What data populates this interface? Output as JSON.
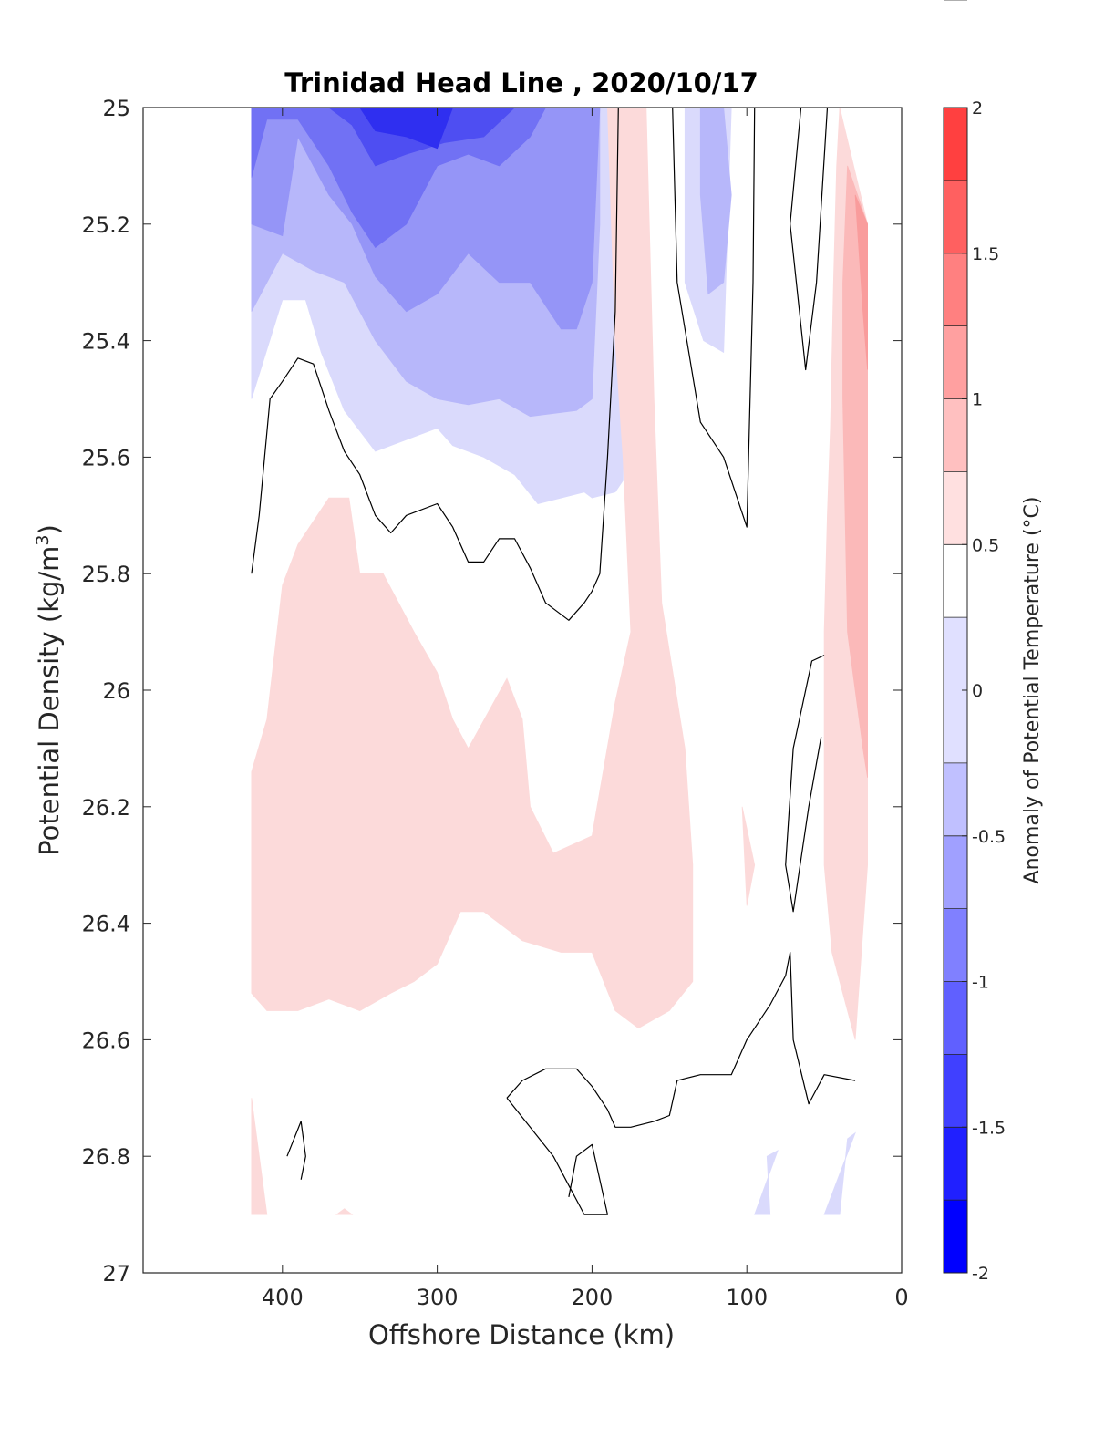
{
  "chart_data": {
    "type": "contour",
    "title": "Trinidad Head Line , 2020/10/17",
    "xlabel": "Offshore Distance (km)",
    "ylabel_main": "Potential Density (kg/m",
    "ylabel_sup": "3",
    "ylabel_close": ")",
    "colorbar_label": "Anomaly of Potential Temperature (°C)",
    "x_ticks": [
      "400",
      "300",
      "200",
      "100",
      "0"
    ],
    "x_tick_values": [
      400,
      300,
      200,
      100,
      0
    ],
    "y_ticks": [
      "25",
      "25.2",
      "25.4",
      "25.6",
      "25.8",
      "26",
      "26.2",
      "26.4",
      "26.6",
      "26.8",
      "27"
    ],
    "y_tick_values": [
      25,
      25.2,
      25.4,
      25.6,
      25.8,
      26,
      26.2,
      26.4,
      26.6,
      26.8,
      27
    ],
    "xlim": [
      490,
      0
    ],
    "ylim": [
      25,
      27
    ],
    "x_reversed": true,
    "y_reversed": true,
    "colorbar_ticks": [
      "2",
      "1.5",
      "1",
      "0.5",
      "0",
      "-0.5",
      "-1",
      "-1.5",
      "-2"
    ],
    "colorbar_tick_values": [
      2,
      1.5,
      1,
      0.5,
      0,
      -0.5,
      -1,
      -1.5,
      -2
    ],
    "colorbar_levels": [
      -2,
      -1.75,
      -1.5,
      -1.25,
      -1,
      -0.75,
      -0.5,
      -0.25,
      0.25,
      0.5,
      0.75,
      1,
      1.25,
      1.5,
      1.75,
      2
    ],
    "colorbar_colors": [
      "#0000ff",
      "#2020ff",
      "#4040ff",
      "#6060ff",
      "#8080ff",
      "#a0a0ff",
      "#c0c0ff",
      "#e0e0ff",
      "#ffffff",
      "#ffe0e0",
      "#ffc0c0",
      "#ffa0a0",
      "#ff8080",
      "#ff6060",
      "#ff4040",
      "#ff2020",
      "#ff0000"
    ],
    "filled_regions": [
      {
        "level": -0.375,
        "color": "#dadafc",
        "points": [
          [
            420,
            25
          ],
          [
            180,
            25
          ],
          [
            180,
            25.64
          ],
          [
            185,
            25.66
          ],
          [
            200,
            25.67
          ],
          [
            205,
            25.66
          ],
          [
            235,
            25.68
          ],
          [
            250,
            25.63
          ],
          [
            270,
            25.6
          ],
          [
            290,
            25.58
          ],
          [
            300,
            25.55
          ],
          [
            320,
            25.57
          ],
          [
            340,
            25.59
          ],
          [
            360,
            25.52
          ],
          [
            375,
            25.42
          ],
          [
            385,
            25.33
          ],
          [
            400,
            25.33
          ],
          [
            420,
            25.5
          ]
        ]
      },
      {
        "level": -0.625,
        "color": "#b7b7fa",
        "points": [
          [
            420,
            25
          ],
          [
            195,
            25
          ],
          [
            195,
            25.2
          ],
          [
            200,
            25.5
          ],
          [
            210,
            25.52
          ],
          [
            240,
            25.53
          ],
          [
            260,
            25.5
          ],
          [
            280,
            25.51
          ],
          [
            300,
            25.5
          ],
          [
            320,
            25.47
          ],
          [
            340,
            25.4
          ],
          [
            360,
            25.3
          ],
          [
            380,
            25.28
          ],
          [
            400,
            25.25
          ],
          [
            420,
            25.35
          ]
        ]
      },
      {
        "level": -0.875,
        "color": "#9595f7",
        "points": [
          [
            420,
            25
          ],
          [
            195,
            25
          ],
          [
            200,
            25.3
          ],
          [
            210,
            25.38
          ],
          [
            220,
            25.38
          ],
          [
            240,
            25.3
          ],
          [
            260,
            25.3
          ],
          [
            280,
            25.25
          ],
          [
            300,
            25.32
          ],
          [
            320,
            25.35
          ],
          [
            340,
            25.29
          ],
          [
            355,
            25.2
          ],
          [
            370,
            25.15
          ],
          [
            390,
            25.05
          ],
          [
            400,
            25.22
          ],
          [
            420,
            25.2
          ]
        ]
      },
      {
        "level": -1.125,
        "color": "#7171f4",
        "points": [
          [
            420,
            25
          ],
          [
            230,
            25
          ],
          [
            240,
            25.05
          ],
          [
            260,
            25.1
          ],
          [
            280,
            25.08
          ],
          [
            300,
            25.1
          ],
          [
            320,
            25.2
          ],
          [
            340,
            25.24
          ],
          [
            355,
            25.18
          ],
          [
            370,
            25.1
          ],
          [
            390,
            25.02
          ],
          [
            410,
            25.02
          ],
          [
            420,
            25.12
          ]
        ]
      },
      {
        "level": -1.375,
        "color": "#4e4ef2",
        "points": [
          [
            415,
            25
          ],
          [
            250,
            25
          ],
          [
            270,
            25.05
          ],
          [
            295,
            25.06
          ],
          [
            320,
            25.08
          ],
          [
            340,
            25.1
          ],
          [
            355,
            25.03
          ],
          [
            370,
            25
          ]
        ]
      },
      {
        "level": -1.625,
        "color": "#2f2ff0",
        "points": [
          [
            350,
            25
          ],
          [
            290,
            25
          ],
          [
            300,
            25.07
          ],
          [
            320,
            25.05
          ],
          [
            340,
            25.04
          ]
        ]
      },
      {
        "level": -0.375,
        "color": "#dadafc",
        "points": [
          [
            140,
            25
          ],
          [
            110,
            25
          ],
          [
            115,
            25.42
          ],
          [
            128,
            25.4
          ],
          [
            140,
            25.3
          ]
        ]
      },
      {
        "level": -0.625,
        "color": "#b7b7fa",
        "points": [
          [
            130,
            25
          ],
          [
            115,
            25
          ],
          [
            110,
            25.15
          ],
          [
            115,
            25.3
          ],
          [
            125,
            25.32
          ],
          [
            130,
            25.15
          ]
        ]
      },
      {
        "level": 0.375,
        "color": "#fcdada",
        "points": [
          [
            370,
            25.67
          ],
          [
            357,
            25.67
          ],
          [
            350,
            25.8
          ],
          [
            335,
            25.8
          ],
          [
            325,
            25.85
          ],
          [
            315,
            25.9
          ],
          [
            300,
            25.97
          ],
          [
            290,
            26.05
          ],
          [
            280,
            26.1
          ],
          [
            255,
            25.98
          ],
          [
            245,
            26.05
          ],
          [
            240,
            26.2
          ],
          [
            225,
            26.28
          ],
          [
            200,
            26.25
          ],
          [
            185,
            26.02
          ],
          [
            175,
            25.9
          ],
          [
            180,
            25.6
          ],
          [
            185,
            25.4
          ],
          [
            190,
            25
          ],
          [
            165,
            25
          ],
          [
            160,
            25.5
          ],
          [
            155,
            25.85
          ],
          [
            140,
            26.1
          ],
          [
            135,
            26.3
          ],
          [
            135,
            26.5
          ],
          [
            150,
            26.55
          ],
          [
            170,
            26.58
          ],
          [
            185,
            26.55
          ],
          [
            200,
            26.45
          ],
          [
            220,
            26.45
          ],
          [
            245,
            26.43
          ],
          [
            270,
            26.38
          ],
          [
            285,
            26.38
          ],
          [
            300,
            26.47
          ],
          [
            315,
            26.5
          ],
          [
            330,
            26.52
          ],
          [
            350,
            26.55
          ],
          [
            370,
            26.53
          ],
          [
            390,
            26.55
          ],
          [
            410,
            26.55
          ],
          [
            420,
            26.52
          ],
          [
            420,
            26.14
          ],
          [
            410,
            26.05
          ],
          [
            400,
            25.82
          ],
          [
            390,
            25.75
          ]
        ]
      },
      {
        "level": 0.375,
        "color": "#fcdada",
        "points": [
          [
            103,
            26.2
          ],
          [
            100,
            26.37
          ],
          [
            95,
            26.3
          ]
        ]
      },
      {
        "level": 0.375,
        "color": "#fcdada",
        "points": [
          [
            40,
            25
          ],
          [
            22,
            25.2
          ],
          [
            22,
            26.3
          ],
          [
            30,
            26.6
          ],
          [
            45,
            26.45
          ],
          [
            50,
            26.3
          ],
          [
            50,
            25.9
          ],
          [
            48,
            25.7
          ],
          [
            46,
            25.55
          ],
          [
            44,
            25.3
          ],
          [
            42,
            25.1
          ]
        ]
      },
      {
        "level": 0.625,
        "color": "#fbb9b9",
        "points": [
          [
            35,
            25.1
          ],
          [
            22,
            25.2
          ],
          [
            22,
            26.15
          ],
          [
            25,
            26.1
          ],
          [
            35,
            25.9
          ],
          [
            38,
            25.5
          ],
          [
            38,
            25.3
          ]
        ]
      },
      {
        "level": 0.875,
        "color": "#f99c9c",
        "points": [
          [
            30,
            25.15
          ],
          [
            22,
            25.2
          ],
          [
            22,
            25.45
          ],
          [
            25,
            25.35
          ]
        ]
      },
      {
        "level": 0.375,
        "color": "#fcdada",
        "points": [
          [
            420,
            26.7
          ],
          [
            410,
            26.9
          ],
          [
            420,
            26.9
          ]
        ]
      },
      {
        "level": 0.375,
        "color": "#fcdada",
        "points": [
          [
            360,
            26.89
          ],
          [
            355,
            26.9
          ],
          [
            365,
            26.9
          ]
        ]
      },
      {
        "level": -0.375,
        "color": "#dadafc",
        "points": [
          [
            80,
            26.79
          ],
          [
            95,
            26.9
          ],
          [
            85,
            26.9
          ],
          [
            87,
            26.8
          ]
        ]
      },
      {
        "level": -0.375,
        "color": "#dadafc",
        "points": [
          [
            30,
            26.76
          ],
          [
            50,
            26.9
          ],
          [
            40,
            26.9
          ],
          [
            35,
            26.77
          ]
        ]
      }
    ],
    "zero_contours": [
      {
        "level": 0,
        "points": [
          [
            420,
            25.8
          ],
          [
            415,
            25.7
          ],
          [
            408,
            25.5
          ],
          [
            400,
            25.47
          ],
          [
            390,
            25.43
          ],
          [
            380,
            25.44
          ],
          [
            370,
            25.52
          ],
          [
            360,
            25.59
          ],
          [
            350,
            25.63
          ],
          [
            340,
            25.7
          ],
          [
            330,
            25.73
          ],
          [
            320,
            25.7
          ],
          [
            300,
            25.68
          ],
          [
            290,
            25.72
          ],
          [
            280,
            25.78
          ],
          [
            270,
            25.78
          ],
          [
            260,
            25.74
          ],
          [
            250,
            25.74
          ],
          [
            240,
            25.79
          ],
          [
            230,
            25.85
          ],
          [
            215,
            25.88
          ],
          [
            205,
            25.85
          ],
          [
            200,
            25.83
          ],
          [
            195,
            25.8
          ],
          [
            190,
            25.6
          ],
          [
            185,
            25.35
          ],
          [
            183,
            25
          ]
        ]
      },
      {
        "level": 0,
        "points": [
          [
            148,
            25
          ],
          [
            145,
            25.3
          ],
          [
            130,
            25.54
          ],
          [
            115,
            25.6
          ],
          [
            100,
            25.72
          ],
          [
            96,
            25.3
          ],
          [
            95,
            25
          ]
        ]
      },
      {
        "level": 0,
        "points": [
          [
            65,
            25
          ],
          [
            72,
            25.2
          ],
          [
            62,
            25.45
          ],
          [
            55,
            25.3
          ],
          [
            48,
            25
          ]
        ]
      },
      {
        "level": 0,
        "points": [
          [
            50,
            25.94
          ],
          [
            58,
            25.95
          ],
          [
            70,
            26.1
          ],
          [
            75,
            26.3
          ],
          [
            70,
            26.38
          ],
          [
            60,
            26.2
          ],
          [
            52,
            26.08
          ]
        ]
      },
      {
        "level": 0,
        "points": [
          [
            255,
            26.7
          ],
          [
            240,
            26.75
          ],
          [
            225,
            26.8
          ],
          [
            215,
            26.85
          ],
          [
            205,
            26.9
          ],
          [
            190,
            26.9
          ],
          [
            200,
            26.78
          ],
          [
            210,
            26.8
          ],
          [
            215,
            26.87
          ]
        ]
      },
      {
        "level": 0,
        "points": [
          [
            255,
            26.7
          ],
          [
            245,
            26.67
          ],
          [
            230,
            26.65
          ],
          [
            210,
            26.65
          ],
          [
            200,
            26.68
          ],
          [
            190,
            26.72
          ],
          [
            185,
            26.75
          ],
          [
            175,
            26.75
          ],
          [
            160,
            26.74
          ],
          [
            150,
            26.73
          ],
          [
            145,
            26.67
          ],
          [
            130,
            26.66
          ],
          [
            110,
            26.66
          ],
          [
            100,
            26.6
          ],
          [
            85,
            26.54
          ],
          [
            75,
            26.49
          ],
          [
            72,
            26.45
          ],
          [
            70,
            26.6
          ],
          [
            60,
            26.71
          ],
          [
            50,
            26.66
          ],
          [
            30,
            26.67
          ]
        ]
      },
      {
        "level": 0,
        "points": [
          [
            397,
            26.8
          ],
          [
            388,
            26.74
          ],
          [
            385,
            26.8
          ],
          [
            388,
            26.84
          ]
        ]
      }
    ]
  }
}
